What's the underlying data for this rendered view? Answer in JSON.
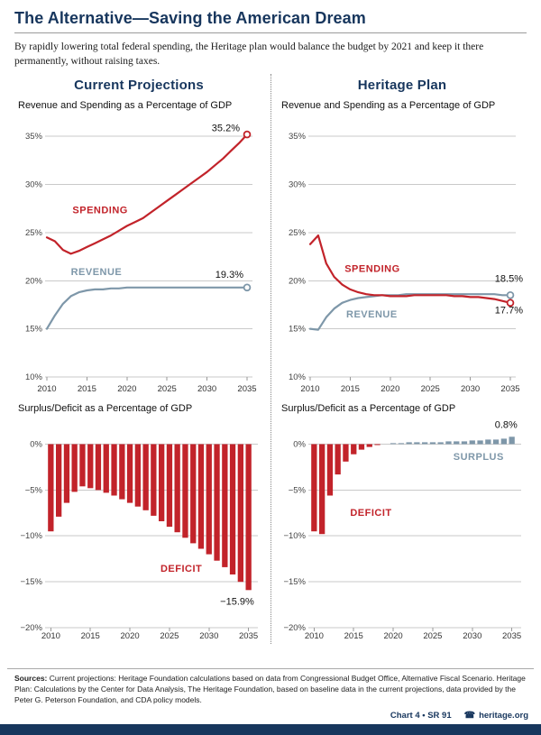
{
  "header": {
    "title": "The Alternative—Saving the American Dream",
    "subtitle": "By rapidly lowering total federal spending, the Heritage plan would balance the budget by 2021 and keep it there permanently, without raising taxes."
  },
  "columns": [
    {
      "title": "Current Projections"
    },
    {
      "title": "Heritage Plan"
    }
  ],
  "colors": {
    "brand_navy": "#17365d",
    "spending_red": "#c2232a",
    "revenue_steel": "#7e97a9",
    "grid_gray": "#c9c9c9"
  },
  "chart_data": [
    {
      "id": "current-lines",
      "type": "line",
      "title": "Revenue and Spending as a Percentage of GDP",
      "x": [
        2010,
        2011,
        2012,
        2013,
        2014,
        2015,
        2016,
        2017,
        2018,
        2019,
        2020,
        2021,
        2022,
        2023,
        2024,
        2025,
        2026,
        2027,
        2028,
        2029,
        2030,
        2031,
        2032,
        2033,
        2034,
        2035
      ],
      "series": [
        {
          "name": "REVENUE",
          "color": "#7e97a9",
          "values": [
            15.0,
            16.4,
            17.6,
            18.4,
            18.8,
            19.0,
            19.1,
            19.1,
            19.2,
            19.2,
            19.3,
            19.3,
            19.3,
            19.3,
            19.3,
            19.3,
            19.3,
            19.3,
            19.3,
            19.3,
            19.3,
            19.3,
            19.3,
            19.3,
            19.3,
            19.3
          ]
        },
        {
          "name": "SPENDING",
          "color": "#c2232a",
          "values": [
            24.5,
            24.1,
            23.2,
            22.8,
            23.1,
            23.5,
            23.9,
            24.3,
            24.7,
            25.2,
            25.7,
            26.1,
            26.5,
            27.1,
            27.7,
            28.3,
            28.9,
            29.5,
            30.1,
            30.7,
            31.3,
            32.0,
            32.7,
            33.5,
            34.3,
            35.2
          ]
        }
      ],
      "ylim": [
        10,
        36.8
      ],
      "yticks": [
        {
          "v": 35,
          "label": "35%"
        },
        {
          "v": 30,
          "label": "30%"
        },
        {
          "v": 25,
          "label": "25%"
        },
        {
          "v": 20,
          "label": "20%"
        },
        {
          "v": 15,
          "label": "15%"
        },
        {
          "v": 10,
          "label": "10%"
        }
      ],
      "xticks": [
        2010,
        2015,
        2020,
        2025,
        2030,
        2035
      ],
      "annotations": [
        {
          "text": "SPENDING",
          "x": 2013.2,
          "y": 27.0,
          "anchor": "start",
          "color": "#c2232a",
          "bold": true
        },
        {
          "text": "REVENUE",
          "x": 2013.0,
          "y": 20.6,
          "anchor": "start",
          "color": "#7e97a9",
          "bold": true
        },
        {
          "text": "35.2%",
          "x": 2035,
          "y": 35.55,
          "anchor": "end",
          "color": "#111111",
          "dx": -8
        },
        {
          "text": "19.3%",
          "x": 2035,
          "y": 20.3,
          "anchor": "end",
          "color": "#111111",
          "dx": -4
        }
      ]
    },
    {
      "id": "heritage-lines",
      "type": "line",
      "title": "Revenue and Spending as a Percentage of GDP",
      "x": [
        2010,
        2011,
        2012,
        2013,
        2014,
        2015,
        2016,
        2017,
        2018,
        2019,
        2020,
        2021,
        2022,
        2023,
        2024,
        2025,
        2026,
        2027,
        2028,
        2029,
        2030,
        2031,
        2032,
        2033,
        2034,
        2035
      ],
      "series": [
        {
          "name": "REVENUE",
          "color": "#7e97a9",
          "values": [
            15.0,
            14.9,
            16.2,
            17.1,
            17.7,
            18.0,
            18.2,
            18.3,
            18.4,
            18.5,
            18.5,
            18.5,
            18.6,
            18.6,
            18.6,
            18.6,
            18.6,
            18.6,
            18.6,
            18.6,
            18.6,
            18.6,
            18.6,
            18.6,
            18.5,
            18.5
          ]
        },
        {
          "name": "SPENDING",
          "color": "#c2232a",
          "values": [
            23.8,
            24.7,
            21.8,
            20.4,
            19.6,
            19.1,
            18.8,
            18.6,
            18.5,
            18.5,
            18.4,
            18.4,
            18.4,
            18.5,
            18.5,
            18.5,
            18.5,
            18.5,
            18.4,
            18.4,
            18.3,
            18.3,
            18.2,
            18.1,
            17.9,
            17.7
          ]
        }
      ],
      "ylim": [
        10,
        36.8
      ],
      "yticks": [
        {
          "v": 35,
          "label": "35%"
        },
        {
          "v": 30,
          "label": "30%"
        },
        {
          "v": 25,
          "label": "25%"
        },
        {
          "v": 20,
          "label": "20%"
        },
        {
          "v": 15,
          "label": "15%"
        },
        {
          "v": 10,
          "label": "10%"
        }
      ],
      "xticks": [
        2010,
        2015,
        2020,
        2025,
        2030,
        2035
      ],
      "annotations": [
        {
          "text": "SPENDING",
          "x": 2014.3,
          "y": 20.9,
          "anchor": "start",
          "color": "#c2232a",
          "bold": true
        },
        {
          "text": "REVENUE",
          "x": 2014.5,
          "y": 16.2,
          "anchor": "start",
          "color": "#7e97a9",
          "bold": true
        },
        {
          "text": "18.5%",
          "x": 2035,
          "y": 19.9,
          "anchor": "end",
          "color": "#111111",
          "dx": 14
        },
        {
          "text": "17.7%",
          "x": 2035,
          "y": 16.6,
          "anchor": "end",
          "color": "#111111",
          "dx": 14
        }
      ]
    },
    {
      "id": "current-bars",
      "type": "bar",
      "title": "Surplus/Deficit as a Percentage of GDP",
      "x": [
        2010,
        2011,
        2012,
        2013,
        2014,
        2015,
        2016,
        2017,
        2018,
        2019,
        2020,
        2021,
        2022,
        2023,
        2024,
        2025,
        2026,
        2027,
        2028,
        2029,
        2030,
        2031,
        2032,
        2033,
        2034,
        2035
      ],
      "values": [
        -9.5,
        -7.9,
        -6.4,
        -5.2,
        -4.6,
        -4.8,
        -5.0,
        -5.3,
        -5.6,
        -6.0,
        -6.4,
        -6.8,
        -7.2,
        -7.8,
        -8.4,
        -9.0,
        -9.6,
        -10.2,
        -10.8,
        -11.4,
        -12.0,
        -12.7,
        -13.4,
        -14.2,
        -15.0,
        -15.9
      ],
      "negative_color": "#c2232a",
      "positive_color": "#7e97a9",
      "ylim": [
        -20,
        2.6
      ],
      "yticks": [
        {
          "v": 0,
          "label": "0%"
        },
        {
          "v": -5,
          "label": "−5%"
        },
        {
          "v": -10,
          "label": "−10%"
        },
        {
          "v": -15,
          "label": "−15%"
        },
        {
          "v": -20,
          "label": "−20%"
        }
      ],
      "xticks": [
        2010,
        2015,
        2020,
        2025,
        2030,
        2035
      ],
      "annotations": [
        {
          "text": "DEFICIT",
          "x": 2026.5,
          "y": -13.9,
          "anchor": "middle",
          "color": "#c2232a",
          "bold": true
        },
        {
          "text": "−15.9%",
          "x": 2035.7,
          "y": -17.5,
          "anchor": "end",
          "color": "#111111"
        }
      ]
    },
    {
      "id": "heritage-bars",
      "type": "bar",
      "title": "Surplus/Deficit as a Percentage of GDP",
      "x": [
        2010,
        2011,
        2012,
        2013,
        2014,
        2015,
        2016,
        2017,
        2018,
        2019,
        2020,
        2021,
        2022,
        2023,
        2024,
        2025,
        2026,
        2027,
        2028,
        2029,
        2030,
        2031,
        2032,
        2033,
        2034,
        2035
      ],
      "values": [
        -9.5,
        -9.8,
        -5.6,
        -3.3,
        -1.9,
        -1.1,
        -0.6,
        -0.3,
        -0.1,
        0.0,
        0.1,
        0.1,
        0.2,
        0.2,
        0.2,
        0.2,
        0.2,
        0.3,
        0.3,
        0.3,
        0.4,
        0.4,
        0.5,
        0.5,
        0.6,
        0.8
      ],
      "negative_color": "#c2232a",
      "positive_color": "#7e97a9",
      "ylim": [
        -20,
        2.6
      ],
      "yticks": [
        {
          "v": 0,
          "label": "0%"
        },
        {
          "v": -5,
          "label": "−5%"
        },
        {
          "v": -10,
          "label": "−10%"
        },
        {
          "v": -15,
          "label": "−15%"
        },
        {
          "v": -20,
          "label": "−20%"
        }
      ],
      "xticks": [
        2010,
        2015,
        2020,
        2025,
        2030,
        2035
      ],
      "annotations": [
        {
          "text": "0.8%",
          "x": 2035.7,
          "y": 1.75,
          "anchor": "end",
          "color": "#111111"
        },
        {
          "text": "SURPLUS",
          "x": 2030.8,
          "y": -1.7,
          "anchor": "middle",
          "color": "#7e97a9",
          "bold": true
        },
        {
          "text": "DEFICIT",
          "x": 2017.2,
          "y": -7.8,
          "anchor": "middle",
          "color": "#c2232a",
          "bold": true
        }
      ]
    }
  ],
  "footer": {
    "sources_label": "Sources:",
    "sources_text": " Current projections: Heritage Foundation calculations based on data from Congressional Budget Office, Alternative Fiscal Scenario.  Heritage Plan: Calculations by the Center for Data Analysis, The Heritage Foundation, based on baseline data in the current projections, data provided by the Peter G. Peterson Foundation, and CDA policy models.",
    "chart_ref": "Chart 4 • SR 91",
    "site": "heritage.org"
  }
}
